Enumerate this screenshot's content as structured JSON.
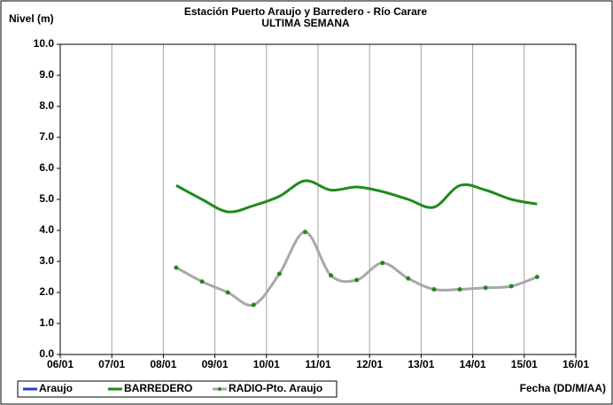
{
  "chart_data": {
    "type": "line",
    "title": "Estación Puerto Araujo y Barredero - Río Carare",
    "subtitle": "ULTIMA SEMANA",
    "y_label": "Nivel (m)",
    "x_label": "Fecha (DD/M/AA)",
    "x": [
      2.25,
      2.75,
      3.25,
      3.75,
      4.25,
      4.75,
      5.25,
      5.75,
      6.25,
      6.75,
      7.25,
      7.75,
      8.25,
      8.75,
      9.25
    ],
    "series": [
      {
        "name": "Araujo",
        "color": "#1f3fd0",
        "markers": false,
        "values": [
          null,
          null,
          null,
          null,
          null,
          null,
          null,
          null,
          null,
          null,
          null,
          null,
          null,
          null,
          null
        ]
      },
      {
        "name": "BARREDERO",
        "color": "#1e8a1e",
        "markers": false,
        "values": [
          5.45,
          5.0,
          4.6,
          4.8,
          5.1,
          5.6,
          5.3,
          5.4,
          5.25,
          5.0,
          4.75,
          5.45,
          5.3,
          5.0,
          4.85
        ]
      },
      {
        "name": "RADIO-Pto. Araujo",
        "color": "#a8a8a8",
        "marker_color": "#1e8a1e",
        "markers": true,
        "values": [
          2.8,
          2.35,
          2.0,
          1.6,
          2.6,
          3.95,
          2.55,
          2.4,
          2.95,
          2.45,
          2.1,
          2.1,
          2.15,
          2.2,
          2.5
        ]
      }
    ],
    "xlim": [
      0,
      10
    ],
    "xticks": [
      {
        "value": 0,
        "label": "06/01"
      },
      {
        "value": 1,
        "label": "07/01"
      },
      {
        "value": 2,
        "label": "08/01"
      },
      {
        "value": 3,
        "label": "09/01"
      },
      {
        "value": 4,
        "label": "10/01"
      },
      {
        "value": 5,
        "label": "11/01"
      },
      {
        "value": 6,
        "label": "12/01"
      },
      {
        "value": 7,
        "label": "13/01"
      },
      {
        "value": 8,
        "label": "14/01"
      },
      {
        "value": 9,
        "label": "15/01"
      },
      {
        "value": 10,
        "label": "16/01"
      }
    ],
    "ylim": [
      0,
      10
    ],
    "yticks": [
      {
        "value": 0,
        "label": "0.0"
      },
      {
        "value": 1,
        "label": "1.0"
      },
      {
        "value": 2,
        "label": "2.0"
      },
      {
        "value": 3,
        "label": "3.0"
      },
      {
        "value": 4,
        "label": "4.0"
      },
      {
        "value": 5,
        "label": "5.0"
      },
      {
        "value": 6,
        "label": "6.0"
      },
      {
        "value": 7,
        "label": "7.0"
      },
      {
        "value": 8,
        "label": "8.0"
      },
      {
        "value": 9,
        "label": "9.0"
      },
      {
        "value": 10,
        "label": "10.0"
      }
    ],
    "grid": "x"
  }
}
